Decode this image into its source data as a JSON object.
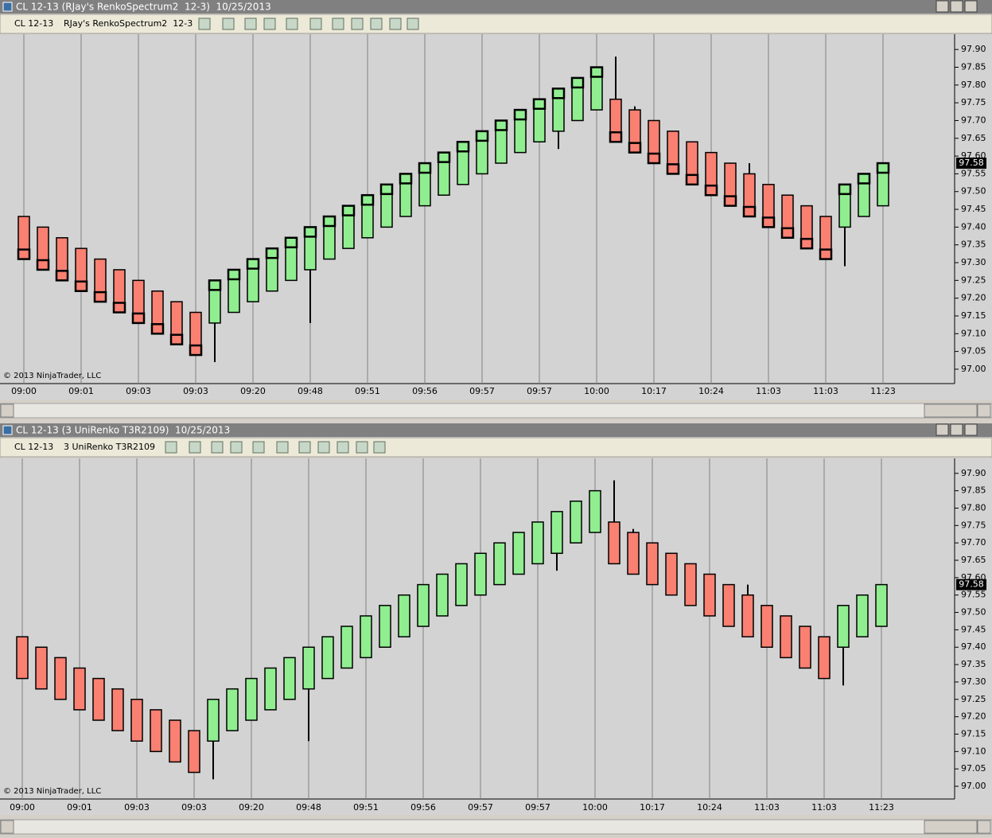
{
  "windows": [
    {
      "title": "CL 12-13 (RJay's RenkoSpectrum2  12-3)  10/25/2013",
      "instrument": "CL 12-13",
      "bar_type": "RJay's RenkoSpectrum2  12-3"
    },
    {
      "title": "CL 12-13 (3 UniRenko T3R2109)  10/25/2013",
      "instrument": "CL 12-13",
      "bar_type": "3 UniRenko T3R2109"
    }
  ],
  "chart_data": [
    {
      "type": "candlestick",
      "close_markers": true,
      "copyright": "© 2013 NinjaTrader, LLC",
      "up_color": "#90ee90",
      "down_color": "#fa8072",
      "categories": [
        "09:00",
        null,
        null,
        "09:01",
        null,
        null,
        "09:03",
        null,
        null,
        "09:03",
        null,
        null,
        "09:20",
        null,
        null,
        "09:48",
        null,
        null,
        "09:51",
        null,
        null,
        "09:56",
        null,
        null,
        "09:57",
        null,
        null,
        "09:57",
        null,
        null,
        "10:00",
        null,
        null,
        "10:17",
        null,
        null,
        "10:24",
        null,
        null,
        "11:03",
        null,
        null,
        "11:03",
        null,
        null,
        "11:23"
      ],
      "open": [
        97.43,
        97.4,
        97.37,
        97.34,
        97.31,
        97.28,
        97.25,
        97.22,
        97.19,
        97.16,
        97.13,
        97.16,
        97.19,
        97.22,
        97.25,
        97.28,
        97.31,
        97.34,
        97.37,
        97.4,
        97.43,
        97.46,
        97.49,
        97.52,
        97.55,
        97.58,
        97.61,
        97.64,
        97.67,
        97.7,
        97.73,
        97.76,
        97.73,
        97.7,
        97.67,
        97.64,
        97.61,
        97.58,
        97.55,
        97.52,
        97.49,
        97.46,
        97.43,
        97.4,
        97.43,
        97.46
      ],
      "high": [
        97.43,
        97.4,
        97.37,
        97.34,
        97.31,
        97.28,
        97.25,
        97.22,
        97.19,
        97.16,
        97.25,
        97.28,
        97.31,
        97.34,
        97.37,
        97.4,
        97.43,
        97.46,
        97.49,
        97.52,
        97.55,
        97.58,
        97.61,
        97.64,
        97.67,
        97.7,
        97.73,
        97.76,
        97.79,
        97.82,
        97.85,
        97.88,
        97.74,
        97.7,
        97.67,
        97.64,
        97.61,
        97.58,
        97.58,
        97.52,
        97.49,
        97.46,
        97.43,
        97.52,
        97.55,
        97.58
      ],
      "low": [
        97.31,
        97.28,
        97.25,
        97.22,
        97.19,
        97.16,
        97.13,
        97.1,
        97.07,
        97.04,
        97.02,
        97.16,
        97.19,
        97.22,
        97.25,
        97.13,
        97.31,
        97.34,
        97.37,
        97.4,
        97.43,
        97.46,
        97.49,
        97.52,
        97.55,
        97.58,
        97.61,
        97.64,
        97.62,
        97.7,
        97.73,
        97.64,
        97.61,
        97.58,
        97.55,
        97.52,
        97.49,
        97.46,
        97.43,
        97.4,
        97.37,
        97.34,
        97.31,
        97.29,
        97.43,
        97.46
      ],
      "close": [
        97.31,
        97.28,
        97.25,
        97.22,
        97.19,
        97.16,
        97.13,
        97.1,
        97.07,
        97.04,
        97.25,
        97.28,
        97.31,
        97.34,
        97.37,
        97.4,
        97.43,
        97.46,
        97.49,
        97.52,
        97.55,
        97.58,
        97.61,
        97.64,
        97.67,
        97.7,
        97.73,
        97.76,
        97.79,
        97.82,
        97.85,
        97.64,
        97.61,
        97.58,
        97.55,
        97.52,
        97.49,
        97.46,
        97.43,
        97.4,
        97.37,
        97.34,
        97.31,
        97.52,
        97.55,
        97.58
      ],
      "ylim": [
        96.964,
        97.943
      ],
      "yticks": [
        {
          "value": 97,
          "label": "97.00"
        },
        97.05,
        {
          "value": 97.1,
          "label": "97.10"
        },
        97.15,
        {
          "value": 97.2,
          "label": "97.20"
        },
        97.25,
        {
          "value": 97.3,
          "label": "97.30"
        },
        97.35,
        {
          "value": 97.4,
          "label": "97.40"
        },
        97.45,
        {
          "value": 97.5,
          "label": "97.50"
        },
        97.55,
        {
          "value": 97.6,
          "label": "97.60"
        },
        97.65,
        {
          "value": 97.7,
          "label": "97.70"
        },
        97.75,
        {
          "value": 97.8,
          "label": "97.80"
        },
        97.85,
        {
          "value": 97.9,
          "label": "97.90"
        }
      ]
    },
    {
      "type": "candlestick",
      "close_markers": false,
      "copyright": "© 2013 NinjaTrader, LLC",
      "up_color": "#90ee90",
      "down_color": "#fa8072",
      "categories": [
        "09:00",
        null,
        null,
        "09:01",
        null,
        null,
        "09:03",
        null,
        null,
        "09:03",
        null,
        null,
        "09:20",
        null,
        null,
        "09:48",
        null,
        null,
        "09:51",
        null,
        null,
        "09:56",
        null,
        null,
        "09:57",
        null,
        null,
        "09:57",
        null,
        null,
        "10:00",
        null,
        null,
        "10:17",
        null,
        null,
        "10:24",
        null,
        null,
        "11:03",
        null,
        null,
        "11:03",
        null,
        null,
        "11:23"
      ],
      "open": [
        97.43,
        97.4,
        97.37,
        97.34,
        97.31,
        97.28,
        97.25,
        97.22,
        97.19,
        97.16,
        97.13,
        97.16,
        97.19,
        97.22,
        97.25,
        97.28,
        97.31,
        97.34,
        97.37,
        97.4,
        97.43,
        97.46,
        97.49,
        97.52,
        97.55,
        97.58,
        97.61,
        97.64,
        97.67,
        97.7,
        97.73,
        97.76,
        97.73,
        97.7,
        97.67,
        97.64,
        97.61,
        97.58,
        97.55,
        97.52,
        97.49,
        97.46,
        97.43,
        97.4,
        97.43,
        97.46
      ],
      "high": [
        97.43,
        97.4,
        97.37,
        97.34,
        97.31,
        97.28,
        97.25,
        97.22,
        97.19,
        97.16,
        97.25,
        97.28,
        97.31,
        97.34,
        97.37,
        97.4,
        97.43,
        97.46,
        97.49,
        97.52,
        97.55,
        97.58,
        97.61,
        97.64,
        97.67,
        97.7,
        97.73,
        97.76,
        97.79,
        97.82,
        97.85,
        97.88,
        97.74,
        97.7,
        97.67,
        97.64,
        97.61,
        97.58,
        97.58,
        97.52,
        97.49,
        97.46,
        97.43,
        97.52,
        97.55,
        97.58
      ],
      "low": [
        97.31,
        97.28,
        97.25,
        97.22,
        97.19,
        97.16,
        97.13,
        97.1,
        97.07,
        97.04,
        97.02,
        97.16,
        97.19,
        97.22,
        97.25,
        97.13,
        97.31,
        97.34,
        97.37,
        97.4,
        97.43,
        97.46,
        97.49,
        97.52,
        97.55,
        97.58,
        97.61,
        97.64,
        97.62,
        97.7,
        97.73,
        97.64,
        97.61,
        97.58,
        97.55,
        97.52,
        97.49,
        97.46,
        97.43,
        97.4,
        97.37,
        97.34,
        97.31,
        97.29,
        97.43,
        97.46
      ],
      "close": [
        97.31,
        97.28,
        97.25,
        97.22,
        97.19,
        97.16,
        97.13,
        97.1,
        97.07,
        97.04,
        97.25,
        97.28,
        97.31,
        97.34,
        97.37,
        97.4,
        97.43,
        97.46,
        97.49,
        97.52,
        97.55,
        97.58,
        97.61,
        97.64,
        97.67,
        97.7,
        97.73,
        97.76,
        97.79,
        97.82,
        97.85,
        97.64,
        97.61,
        97.58,
        97.55,
        97.52,
        97.49,
        97.46,
        97.43,
        97.4,
        97.37,
        97.34,
        97.31,
        97.52,
        97.55,
        97.58
      ],
      "ylim": [
        96.968,
        97.943
      ],
      "yticks": [
        {
          "value": 97,
          "label": "97.00"
        },
        97.05,
        {
          "value": 97.1,
          "label": "97.10"
        },
        97.15,
        {
          "value": 97.2,
          "label": "97.20"
        },
        97.25,
        {
          "value": 97.3,
          "label": "97.30"
        },
        97.35,
        {
          "value": 97.4,
          "label": "97.40"
        },
        97.45,
        {
          "value": 97.5,
          "label": "97.50"
        },
        97.55,
        {
          "value": 97.6,
          "label": "97.60"
        },
        97.65,
        {
          "value": 97.7,
          "label": "97.70"
        },
        97.75,
        {
          "value": 97.8,
          "label": "97.80"
        },
        97.85,
        {
          "value": 97.9,
          "label": "97.90"
        }
      ]
    }
  ]
}
